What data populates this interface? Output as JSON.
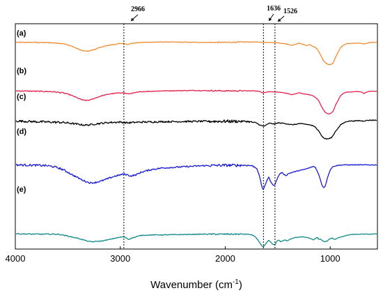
{
  "chart_data": {
    "type": "line",
    "xlabel": "Wavenumber (cm",
    "xlabel_superscript": "-1",
    "xlabel_close": ")",
    "ylabel": "",
    "xlim": [
      4000,
      550
    ],
    "x_reversed": true,
    "x_ticks": [
      {
        "value": 4000,
        "label": "4000"
      },
      {
        "value": 3000,
        "label": "3000"
      },
      {
        "value": 2000,
        "label": "2000"
      },
      {
        "value": 1000,
        "label": "1000"
      }
    ],
    "grid": false,
    "legend": "none",
    "annotations": [
      {
        "value": 2966,
        "label": "2966"
      },
      {
        "value": 1636,
        "label": "1636"
      },
      {
        "value": 1526,
        "label": "1526"
      }
    ],
    "series": [
      {
        "name": "(a)",
        "color": "#f28a2e",
        "noise": 0.8,
        "points": [
          [
            4000,
            95
          ],
          [
            3800,
            95
          ],
          [
            3650,
            94
          ],
          [
            3550,
            92
          ],
          [
            3480,
            87
          ],
          [
            3420,
            80
          ],
          [
            3370,
            74
          ],
          [
            3330,
            72
          ],
          [
            3290,
            73
          ],
          [
            3240,
            77
          ],
          [
            3180,
            83
          ],
          [
            3100,
            88
          ],
          [
            3000,
            92
          ],
          [
            2966,
            92
          ],
          [
            2930,
            90
          ],
          [
            2880,
            93
          ],
          [
            2800,
            95
          ],
          [
            2600,
            96
          ],
          [
            2200,
            95
          ],
          [
            2000,
            95
          ],
          [
            1800,
            96
          ],
          [
            1700,
            96
          ],
          [
            1640,
            95
          ],
          [
            1580,
            95
          ],
          [
            1500,
            94
          ],
          [
            1450,
            92
          ],
          [
            1400,
            90
          ],
          [
            1370,
            87
          ],
          [
            1330,
            90
          ],
          [
            1300,
            93
          ],
          [
            1260,
            90
          ],
          [
            1230,
            87
          ],
          [
            1190,
            89
          ],
          [
            1170,
            85
          ],
          [
            1140,
            82
          ],
          [
            1110,
            72
          ],
          [
            1090,
            61
          ],
          [
            1070,
            50
          ],
          [
            1050,
            43
          ],
          [
            1030,
            39
          ],
          [
            1010,
            37
          ],
          [
            990,
            38
          ],
          [
            970,
            42
          ],
          [
            950,
            56
          ],
          [
            920,
            72
          ],
          [
            900,
            82
          ],
          [
            870,
            88
          ],
          [
            840,
            92
          ],
          [
            800,
            92
          ],
          [
            760,
            93
          ],
          [
            720,
            93
          ],
          [
            700,
            92
          ],
          [
            680,
            91
          ],
          [
            660,
            92
          ],
          [
            620,
            95
          ],
          [
            550,
            95
          ]
        ]
      },
      {
        "name": "(b)",
        "color": "#e8204e",
        "noise": 1.0,
        "points": [
          [
            4000,
            85
          ],
          [
            3800,
            84
          ],
          [
            3650,
            83
          ],
          [
            3550,
            80
          ],
          [
            3480,
            75
          ],
          [
            3420,
            68
          ],
          [
            3370,
            62
          ],
          [
            3330,
            60
          ],
          [
            3290,
            61
          ],
          [
            3240,
            66
          ],
          [
            3180,
            72
          ],
          [
            3100,
            77
          ],
          [
            3000,
            80
          ],
          [
            2966,
            80
          ],
          [
            2930,
            77
          ],
          [
            2880,
            79
          ],
          [
            2800,
            83
          ],
          [
            2600,
            85
          ],
          [
            2300,
            86
          ],
          [
            2000,
            85
          ],
          [
            1800,
            85
          ],
          [
            1700,
            85
          ],
          [
            1660,
            82
          ],
          [
            1640,
            80
          ],
          [
            1620,
            81
          ],
          [
            1580,
            83
          ],
          [
            1500,
            82
          ],
          [
            1450,
            80
          ],
          [
            1400,
            78
          ],
          [
            1370,
            75
          ],
          [
            1330,
            77
          ],
          [
            1300,
            80
          ],
          [
            1250,
            77
          ],
          [
            1200,
            75
          ],
          [
            1170,
            73
          ],
          [
            1140,
            68
          ],
          [
            1110,
            60
          ],
          [
            1090,
            48
          ],
          [
            1070,
            38
          ],
          [
            1050,
            30
          ],
          [
            1030,
            26
          ],
          [
            1010,
            25
          ],
          [
            990,
            27
          ],
          [
            970,
            33
          ],
          [
            950,
            47
          ],
          [
            920,
            63
          ],
          [
            900,
            73
          ],
          [
            870,
            79
          ],
          [
            840,
            82
          ],
          [
            800,
            82
          ],
          [
            760,
            83
          ],
          [
            720,
            83
          ],
          [
            700,
            82
          ],
          [
            680,
            78
          ],
          [
            660,
            81
          ],
          [
            620,
            84
          ],
          [
            550,
            84
          ]
        ]
      },
      {
        "name": "(c)",
        "color": "#000000",
        "noise": 2.2,
        "points": [
          [
            4000,
            63
          ],
          [
            3800,
            61
          ],
          [
            3650,
            60
          ],
          [
            3550,
            59
          ],
          [
            3480,
            57
          ],
          [
            3420,
            55
          ],
          [
            3370,
            53
          ],
          [
            3330,
            52
          ],
          [
            3290,
            53
          ],
          [
            3240,
            55
          ],
          [
            3180,
            57
          ],
          [
            3100,
            59
          ],
          [
            3000,
            60
          ],
          [
            2966,
            59
          ],
          [
            2930,
            58
          ],
          [
            2880,
            59
          ],
          [
            2800,
            60
          ],
          [
            2600,
            61
          ],
          [
            2200,
            62
          ],
          [
            2000,
            62
          ],
          [
            1800,
            62
          ],
          [
            1750,
            60
          ],
          [
            1700,
            57
          ],
          [
            1660,
            51
          ],
          [
            1636,
            49
          ],
          [
            1610,
            52
          ],
          [
            1580,
            57
          ],
          [
            1526,
            55
          ],
          [
            1500,
            58
          ],
          [
            1450,
            57
          ],
          [
            1400,
            55
          ],
          [
            1370,
            53
          ],
          [
            1330,
            54
          ],
          [
            1300,
            56
          ],
          [
            1250,
            55
          ],
          [
            1200,
            53
          ],
          [
            1170,
            51
          ],
          [
            1140,
            46
          ],
          [
            1110,
            38
          ],
          [
            1090,
            28
          ],
          [
            1070,
            20
          ],
          [
            1050,
            17
          ],
          [
            1030,
            16
          ],
          [
            1010,
            17
          ],
          [
            990,
            19
          ],
          [
            970,
            26
          ],
          [
            950,
            36
          ],
          [
            920,
            46
          ],
          [
            900,
            53
          ],
          [
            870,
            58
          ],
          [
            840,
            62
          ],
          [
            800,
            63
          ],
          [
            760,
            63
          ],
          [
            720,
            64
          ],
          [
            700,
            63
          ],
          [
            680,
            63
          ],
          [
            660,
            64
          ],
          [
            620,
            65
          ],
          [
            550,
            65
          ]
        ]
      },
      {
        "name": "(d)",
        "color": "#1a1ad6",
        "noise": 2.0,
        "points": [
          [
            4000,
            43
          ],
          [
            3800,
            42
          ],
          [
            3700,
            41
          ],
          [
            3650,
            39
          ],
          [
            3600,
            36
          ],
          [
            3550,
            31
          ],
          [
            3500,
            24
          ],
          [
            3450,
            16
          ],
          [
            3400,
            9
          ],
          [
            3350,
            2
          ],
          [
            3300,
            -3
          ],
          [
            3280,
            -4
          ],
          [
            3240,
            -3
          ],
          [
            3180,
            1
          ],
          [
            3120,
            7
          ],
          [
            3060,
            13
          ],
          [
            3000,
            17
          ],
          [
            2966,
            19
          ],
          [
            2930,
            17
          ],
          [
            2900,
            14
          ],
          [
            2850,
            17
          ],
          [
            2800,
            24
          ],
          [
            2700,
            31
          ],
          [
            2600,
            35
          ],
          [
            2400,
            38
          ],
          [
            2200,
            41
          ],
          [
            2000,
            42
          ],
          [
            1900,
            42
          ],
          [
            1800,
            42
          ],
          [
            1750,
            41
          ],
          [
            1700,
            35
          ],
          [
            1670,
            10
          ],
          [
            1650,
            -15
          ],
          [
            1636,
            -22
          ],
          [
            1620,
            -10
          ],
          [
            1600,
            5
          ],
          [
            1585,
            11
          ],
          [
            1560,
            -5
          ],
          [
            1540,
            -10
          ],
          [
            1526,
            -8
          ],
          [
            1500,
            10
          ],
          [
            1480,
            20
          ],
          [
            1460,
            23
          ],
          [
            1440,
            18
          ],
          [
            1420,
            15
          ],
          [
            1400,
            20
          ],
          [
            1380,
            22
          ],
          [
            1340,
            25
          ],
          [
            1300,
            28
          ],
          [
            1260,
            30
          ],
          [
            1200,
            35
          ],
          [
            1160,
            39
          ],
          [
            1140,
            36
          ],
          [
            1120,
            25
          ],
          [
            1100,
            10
          ],
          [
            1080,
            -8
          ],
          [
            1065,
            -16
          ],
          [
            1050,
            -14
          ],
          [
            1040,
            -5
          ],
          [
            1020,
            15
          ],
          [
            1000,
            30
          ],
          [
            980,
            37
          ],
          [
            960,
            40
          ],
          [
            920,
            42
          ],
          [
            880,
            43
          ],
          [
            840,
            43
          ],
          [
            800,
            43
          ],
          [
            700,
            43
          ],
          [
            600,
            43
          ],
          [
            550,
            43
          ]
        ]
      },
      {
        "name": "(e)",
        "color": "#11898a",
        "noise": 1.0,
        "points": [
          [
            4000,
            18
          ],
          [
            3800,
            17
          ],
          [
            3700,
            17
          ],
          [
            3600,
            17
          ],
          [
            3550,
            15
          ],
          [
            3500,
            12
          ],
          [
            3450,
            9
          ],
          [
            3400,
            6
          ],
          [
            3350,
            2
          ],
          [
            3300,
            -2
          ],
          [
            3270,
            -3
          ],
          [
            3230,
            -2
          ],
          [
            3180,
            -1
          ],
          [
            3120,
            2
          ],
          [
            3060,
            6
          ],
          [
            3000,
            9
          ],
          [
            2966,
            10
          ],
          [
            2940,
            7
          ],
          [
            2920,
            3
          ],
          [
            2900,
            6
          ],
          [
            2850,
            10
          ],
          [
            2800,
            14
          ],
          [
            2700,
            15
          ],
          [
            2600,
            15
          ],
          [
            2400,
            16
          ],
          [
            2200,
            17
          ],
          [
            2000,
            17
          ],
          [
            1900,
            17
          ],
          [
            1800,
            17
          ],
          [
            1760,
            16
          ],
          [
            1720,
            12
          ],
          [
            1690,
            2
          ],
          [
            1665,
            -8
          ],
          [
            1650,
            -14
          ],
          [
            1636,
            -16
          ],
          [
            1620,
            -10
          ],
          [
            1600,
            -3
          ],
          [
            1585,
            1
          ],
          [
            1560,
            -6
          ],
          [
            1540,
            -11
          ],
          [
            1526,
            -10
          ],
          [
            1510,
            -2
          ],
          [
            1490,
            2
          ],
          [
            1470,
            -3
          ],
          [
            1450,
            0
          ],
          [
            1430,
            2
          ],
          [
            1410,
            -1
          ],
          [
            1390,
            3
          ],
          [
            1370,
            5
          ],
          [
            1340,
            8
          ],
          [
            1300,
            9
          ],
          [
            1260,
            10
          ],
          [
            1230,
            9
          ],
          [
            1200,
            7
          ],
          [
            1180,
            5
          ],
          [
            1160,
            2
          ],
          [
            1140,
            6
          ],
          [
            1120,
            8
          ],
          [
            1110,
            3
          ],
          [
            1090,
            4
          ],
          [
            1070,
            -1
          ],
          [
            1050,
            -3
          ],
          [
            1040,
            -1
          ],
          [
            1030,
            -2
          ],
          [
            1010,
            4
          ],
          [
            980,
            7
          ],
          [
            960,
            3
          ],
          [
            940,
            5
          ],
          [
            920,
            8
          ],
          [
            880,
            11
          ],
          [
            840,
            14
          ],
          [
            800,
            16
          ],
          [
            700,
            17
          ],
          [
            600,
            17
          ],
          [
            550,
            18
          ]
        ]
      }
    ]
  }
}
